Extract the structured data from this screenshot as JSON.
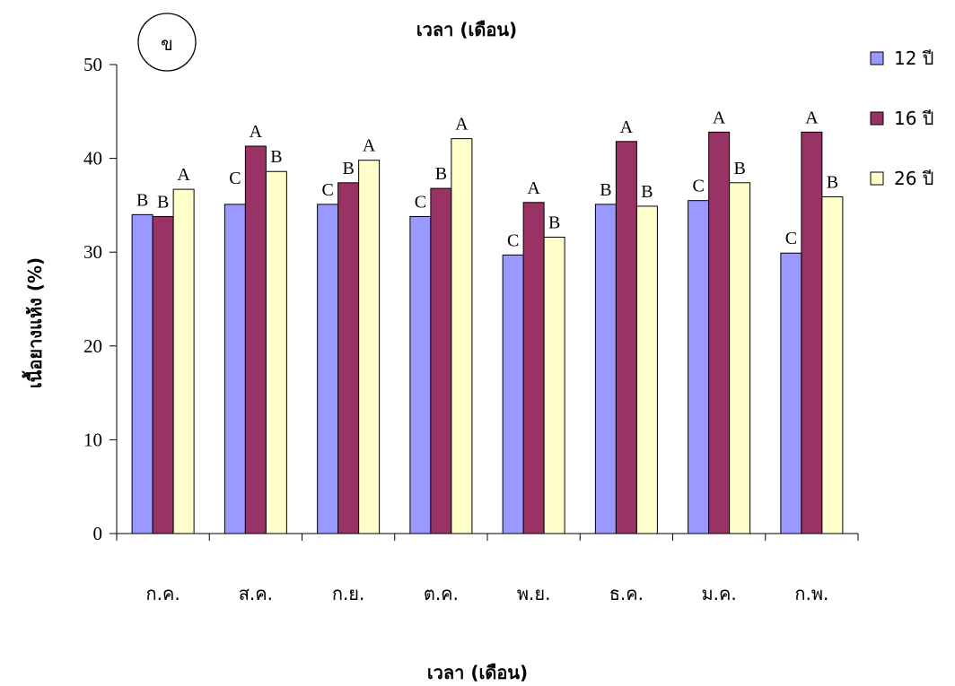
{
  "chart_data": {
    "type": "bar",
    "title": "เวลา (เดือน)",
    "xlabel": "เวลา (เดือน)",
    "ylabel": "เนื้อยางแห้ง (%)",
    "panel_label": "ข",
    "ylim": [
      0,
      50
    ],
    "yticks": [
      "0",
      "10",
      "20",
      "30",
      "40",
      "50"
    ],
    "categories": [
      "ก.ค.",
      "ส.ค.",
      "ก.ย.",
      "ต.ค.",
      "พ.ย.",
      "ธ.ค.",
      "ม.ค.",
      "ก.พ."
    ],
    "legend_position": "right",
    "grid": false,
    "series": [
      {
        "name": "12 ปี",
        "color": "#9999FF",
        "values": [
          34.0,
          35.1,
          35.1,
          33.8,
          29.7,
          35.1,
          35.5,
          29.9
        ],
        "labels": [
          "B",
          "",
          "C",
          "C",
          "C",
          "B",
          "C",
          "C"
        ]
      },
      {
        "name": "16 ปี",
        "color": "#993366",
        "values": [
          33.8,
          41.3,
          37.4,
          36.8,
          35.3,
          41.8,
          42.8,
          42.8
        ],
        "labels": [
          "B",
          "A",
          "B",
          "B",
          "A",
          "A",
          "A",
          "A"
        ]
      },
      {
        "name": "26 ปี",
        "color": "#FFFFCC",
        "values": [
          36.7,
          38.6,
          39.8,
          42.1,
          31.6,
          34.9,
          37.4,
          35.9
        ],
        "labels": [
          "A",
          "B",
          "A",
          "A",
          "B",
          "B",
          "B",
          "B"
        ]
      }
    ],
    "extra_labels": [
      {
        "category": "ส.ค.",
        "series": "12 ปี",
        "text": "C"
      }
    ]
  }
}
